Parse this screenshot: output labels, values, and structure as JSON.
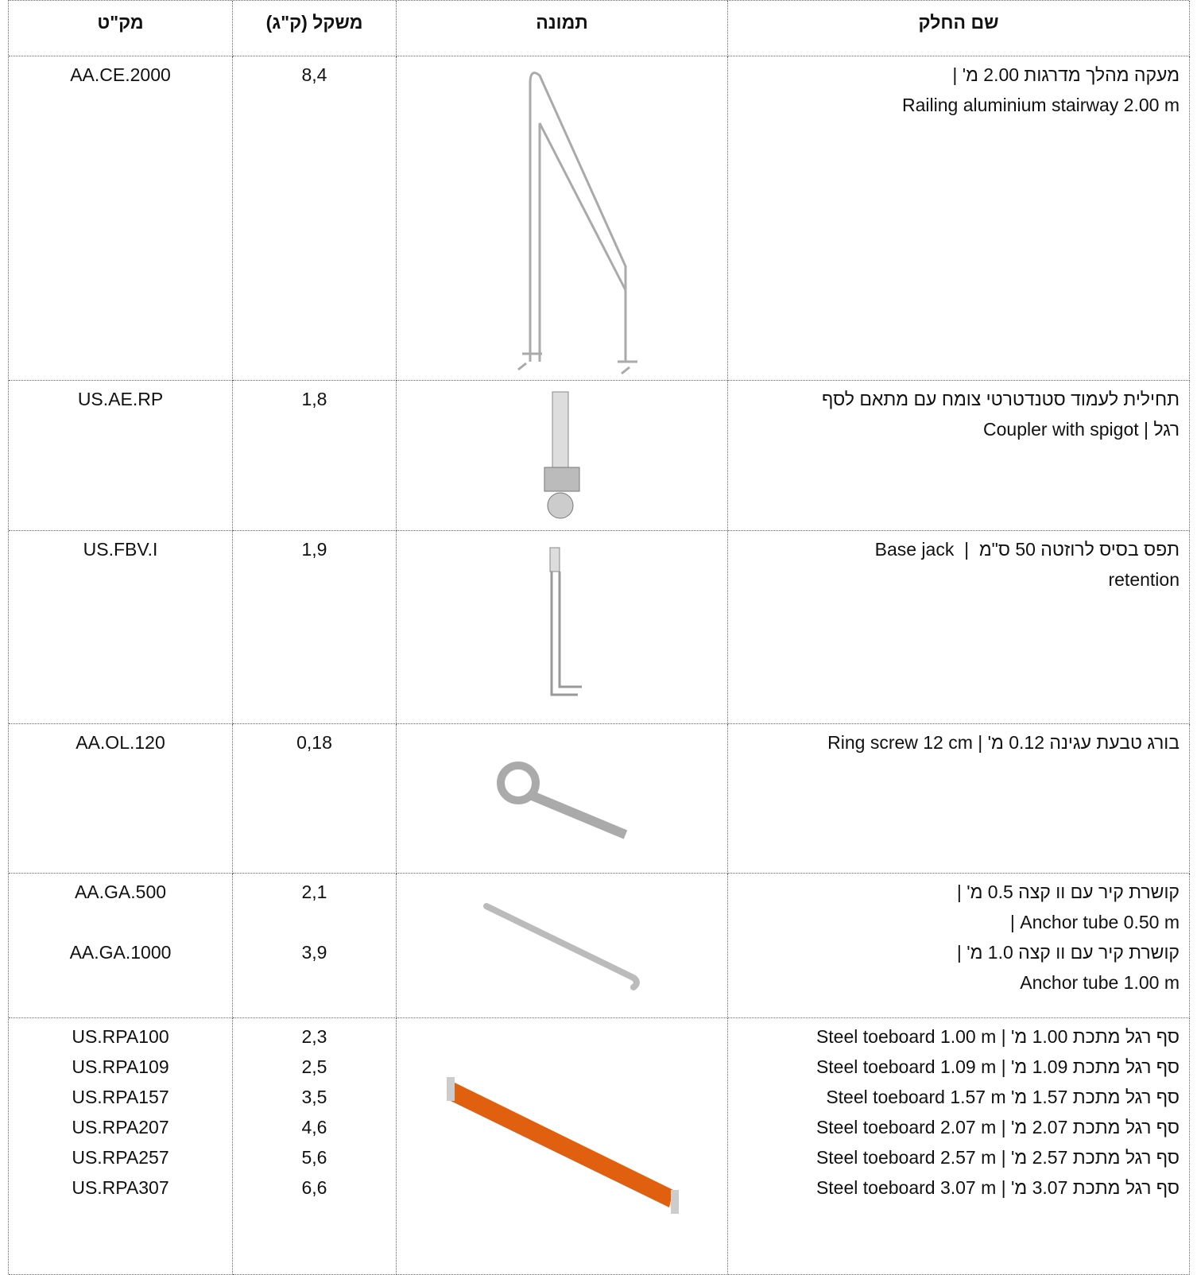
{
  "header": {
    "sku": "מק\"ט",
    "weight": "משקל (ק\"ג)",
    "image": "תמונה",
    "name": "שם החלק"
  },
  "rows": [
    {
      "sku": [
        "AA.CE.2000"
      ],
      "weight": [
        "8,4"
      ],
      "name": [
        "מעקה מהלך מדרגות 2.00 מ' |",
        "Railing aluminium stairway 2.00 m"
      ]
    },
    {
      "sku": [
        "US.AE.RP"
      ],
      "weight": [
        "1,8"
      ],
      "name": [
        "תחילית לעמוד סטנדטרטי צומח עם מתאם לסף",
        "רגל | Coupler with spigot"
      ]
    },
    {
      "sku": [
        "US.FBV.I"
      ],
      "weight": [
        "1,9"
      ],
      "name": [
        "תפס בסיס לרוזטה 50 ס\"מ  |  Base jack",
        "retention"
      ]
    },
    {
      "sku": [
        "AA.OL.120"
      ],
      "weight": [
        "0,18"
      ],
      "name": [
        "בורג טבעת עגינה 0.12 מ' | Ring screw 12 cm"
      ]
    },
    {
      "sku": [
        "AA.GA.500",
        "AA.GA.1000"
      ],
      "weight": [
        "2,1",
        "3,9"
      ],
      "name": [
        "קושרת קיר עם וו קצה 0.5 מ' |",
        "Anchor tube 0.50 m |",
        "קושרת קיר עם וו קצה 1.0 מ' |",
        "Anchor tube 1.00 m"
      ]
    },
    {
      "sku": [
        "US.RPA100",
        "US.RPA109",
        "US.RPA157",
        "US.RPA207",
        "US.RPA257",
        "US.RPA307"
      ],
      "weight": [
        "2,3",
        "2,5",
        "3,5",
        "4,6",
        "5,6",
        "6,6"
      ],
      "name": [
        "סף רגל מתכת 1.00 מ' | Steel toeboard 1.00 m",
        "סף רגל מתכת 1.09 מ' | Steel toeboard 1.09 m",
        "סף רגל מתכת 1.57 מ' Steel toeboard 1.57 m",
        "סף רגל מתכת 2.07 מ' | Steel toeboard 2.07 m",
        "סף רגל מתכת 2.57 מ' | Steel toeboard 2.57 m",
        "סף רגל מתכת 3.07 מ' | Steel toeboard 3.07 m"
      ]
    }
  ]
}
